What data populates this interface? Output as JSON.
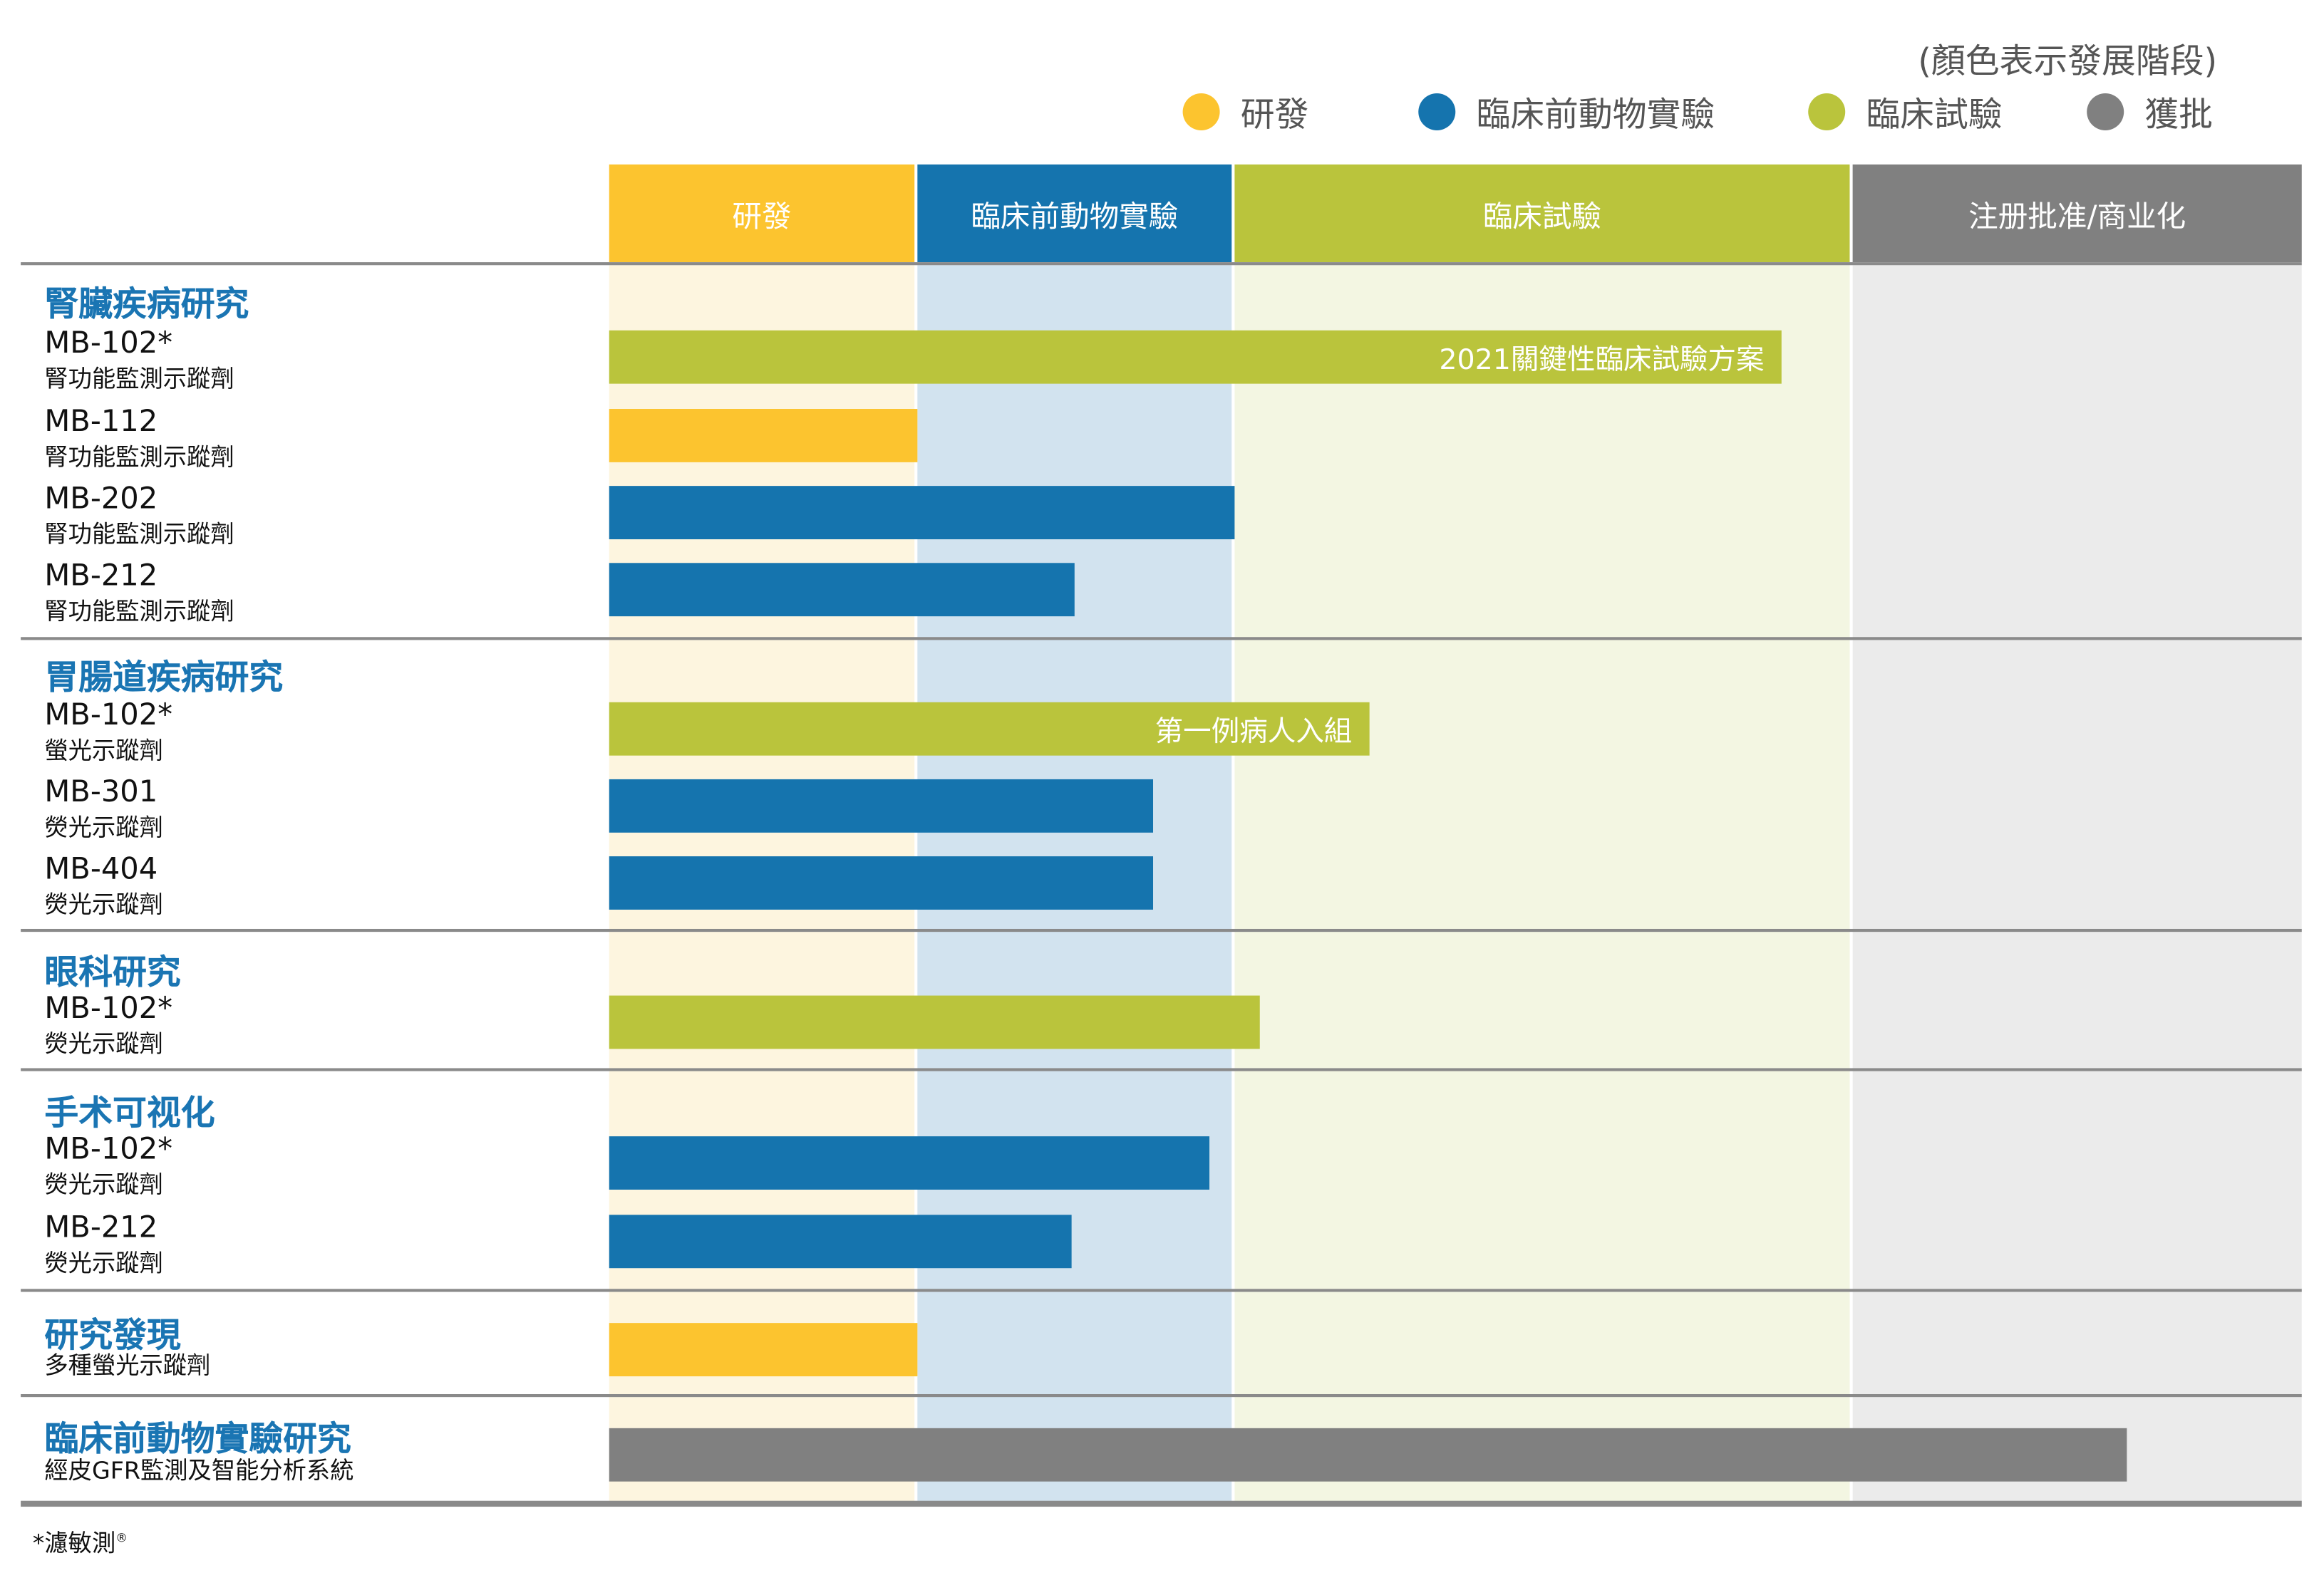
{
  "legend": {
    "note": "(顏色表示發展階段)",
    "items": [
      {
        "label": "研發",
        "color": "#FCC42F"
      },
      {
        "label": "臨床前動物實驗",
        "color": "#1574AE"
      },
      {
        "label": "臨床試驗",
        "color": "#BAC43C"
      },
      {
        "label": "獲批",
        "color": "#808080"
      }
    ]
  },
  "stages": [
    {
      "label": "研發",
      "color": "#FCC42F",
      "tint": "#FDF5DF"
    },
    {
      "label": "臨床前動物實驗",
      "color": "#1574AE",
      "tint": "#D2E3EF"
    },
    {
      "label": "臨床試驗",
      "color": "#BAC43C",
      "tint": "#F3F6E2"
    },
    {
      "label": "注册批准/商业化",
      "color": "#808080",
      "tint": "#EBEBEB"
    }
  ],
  "groups": [
    {
      "title": "腎臟疾病研究",
      "items": [
        {
          "name": "MB-102*",
          "sub": "腎功能監測示蹤劑",
          "stage": "臨床試驗",
          "progress_stages": 2.89,
          "note": "2021關鍵性臨床試驗方案"
        },
        {
          "name": "MB-112",
          "sub": "腎功能監測示蹤劑",
          "stage": "研發",
          "progress_stages": 1.0
        },
        {
          "name": "MB-202",
          "sub": "腎功能監測示蹤劑",
          "stage": "臨床前動物實驗",
          "progress_stages": 2.0
        },
        {
          "name": "MB-212",
          "sub": "腎功能監測示蹤劑",
          "stage": "臨床前動物實驗",
          "progress_stages": 1.5
        }
      ]
    },
    {
      "title": "胃腸道疾病研究",
      "items": [
        {
          "name": "MB-102*",
          "sub": "螢光示蹤劑",
          "stage": "臨床試驗",
          "progress_stages": 2.22,
          "note": "第一例病人入組"
        },
        {
          "name": "MB-301",
          "sub": "熒光示蹤劑",
          "stage": "臨床前動物實驗",
          "progress_stages": 1.75
        },
        {
          "name": "MB-404",
          "sub": "熒光示蹤劑",
          "stage": "臨床前動物實驗",
          "progress_stages": 1.75
        }
      ]
    },
    {
      "title": "眼科研究",
      "items": [
        {
          "name": "MB-102*",
          "sub": "熒光示蹤劑",
          "stage": "臨床試驗",
          "progress_stages": 2.04
        }
      ]
    },
    {
      "title": "手术可视化",
      "items": [
        {
          "name": "MB-102*",
          "sub": "熒光示蹤劑",
          "stage": "臨床前動物實驗",
          "progress_stages": 1.93
        },
        {
          "name": "MB-212",
          "sub": "熒光示蹤劑",
          "stage": "臨床前動物實驗",
          "progress_stages": 1.49
        }
      ]
    },
    {
      "title": "研究發現",
      "items": [
        {
          "name": "",
          "sub": "多種螢光示蹤劑",
          "stage": "研發",
          "progress_stages": 1.0
        }
      ]
    },
    {
      "title": "臨床前動物實驗研究",
      "items": [
        {
          "name": "",
          "sub": "經皮GFR監測及智能分析系統",
          "stage": "獲批",
          "progress_stages": 3.61
        }
      ]
    }
  ],
  "footnote": {
    "text": "*濾敏測",
    "mark": "®"
  }
}
